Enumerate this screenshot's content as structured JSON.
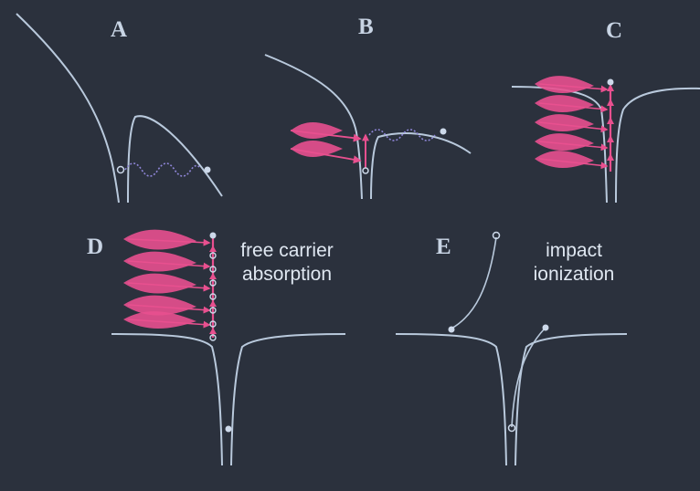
{
  "panels": [
    {
      "letter": "A"
    },
    {
      "letter": "B"
    },
    {
      "letter": "C"
    },
    {
      "letter": "D",
      "caption_line1": "free carrier",
      "caption_line2": "absorption"
    },
    {
      "letter": "E",
      "caption_line1": "impact",
      "caption_line2": "ionization"
    }
  ],
  "colors": {
    "background": "#2b313d",
    "curve": "#b9c9dc",
    "photon": "#e8508f",
    "wave": "#8f86d8",
    "electron": "#cdd9ea"
  }
}
